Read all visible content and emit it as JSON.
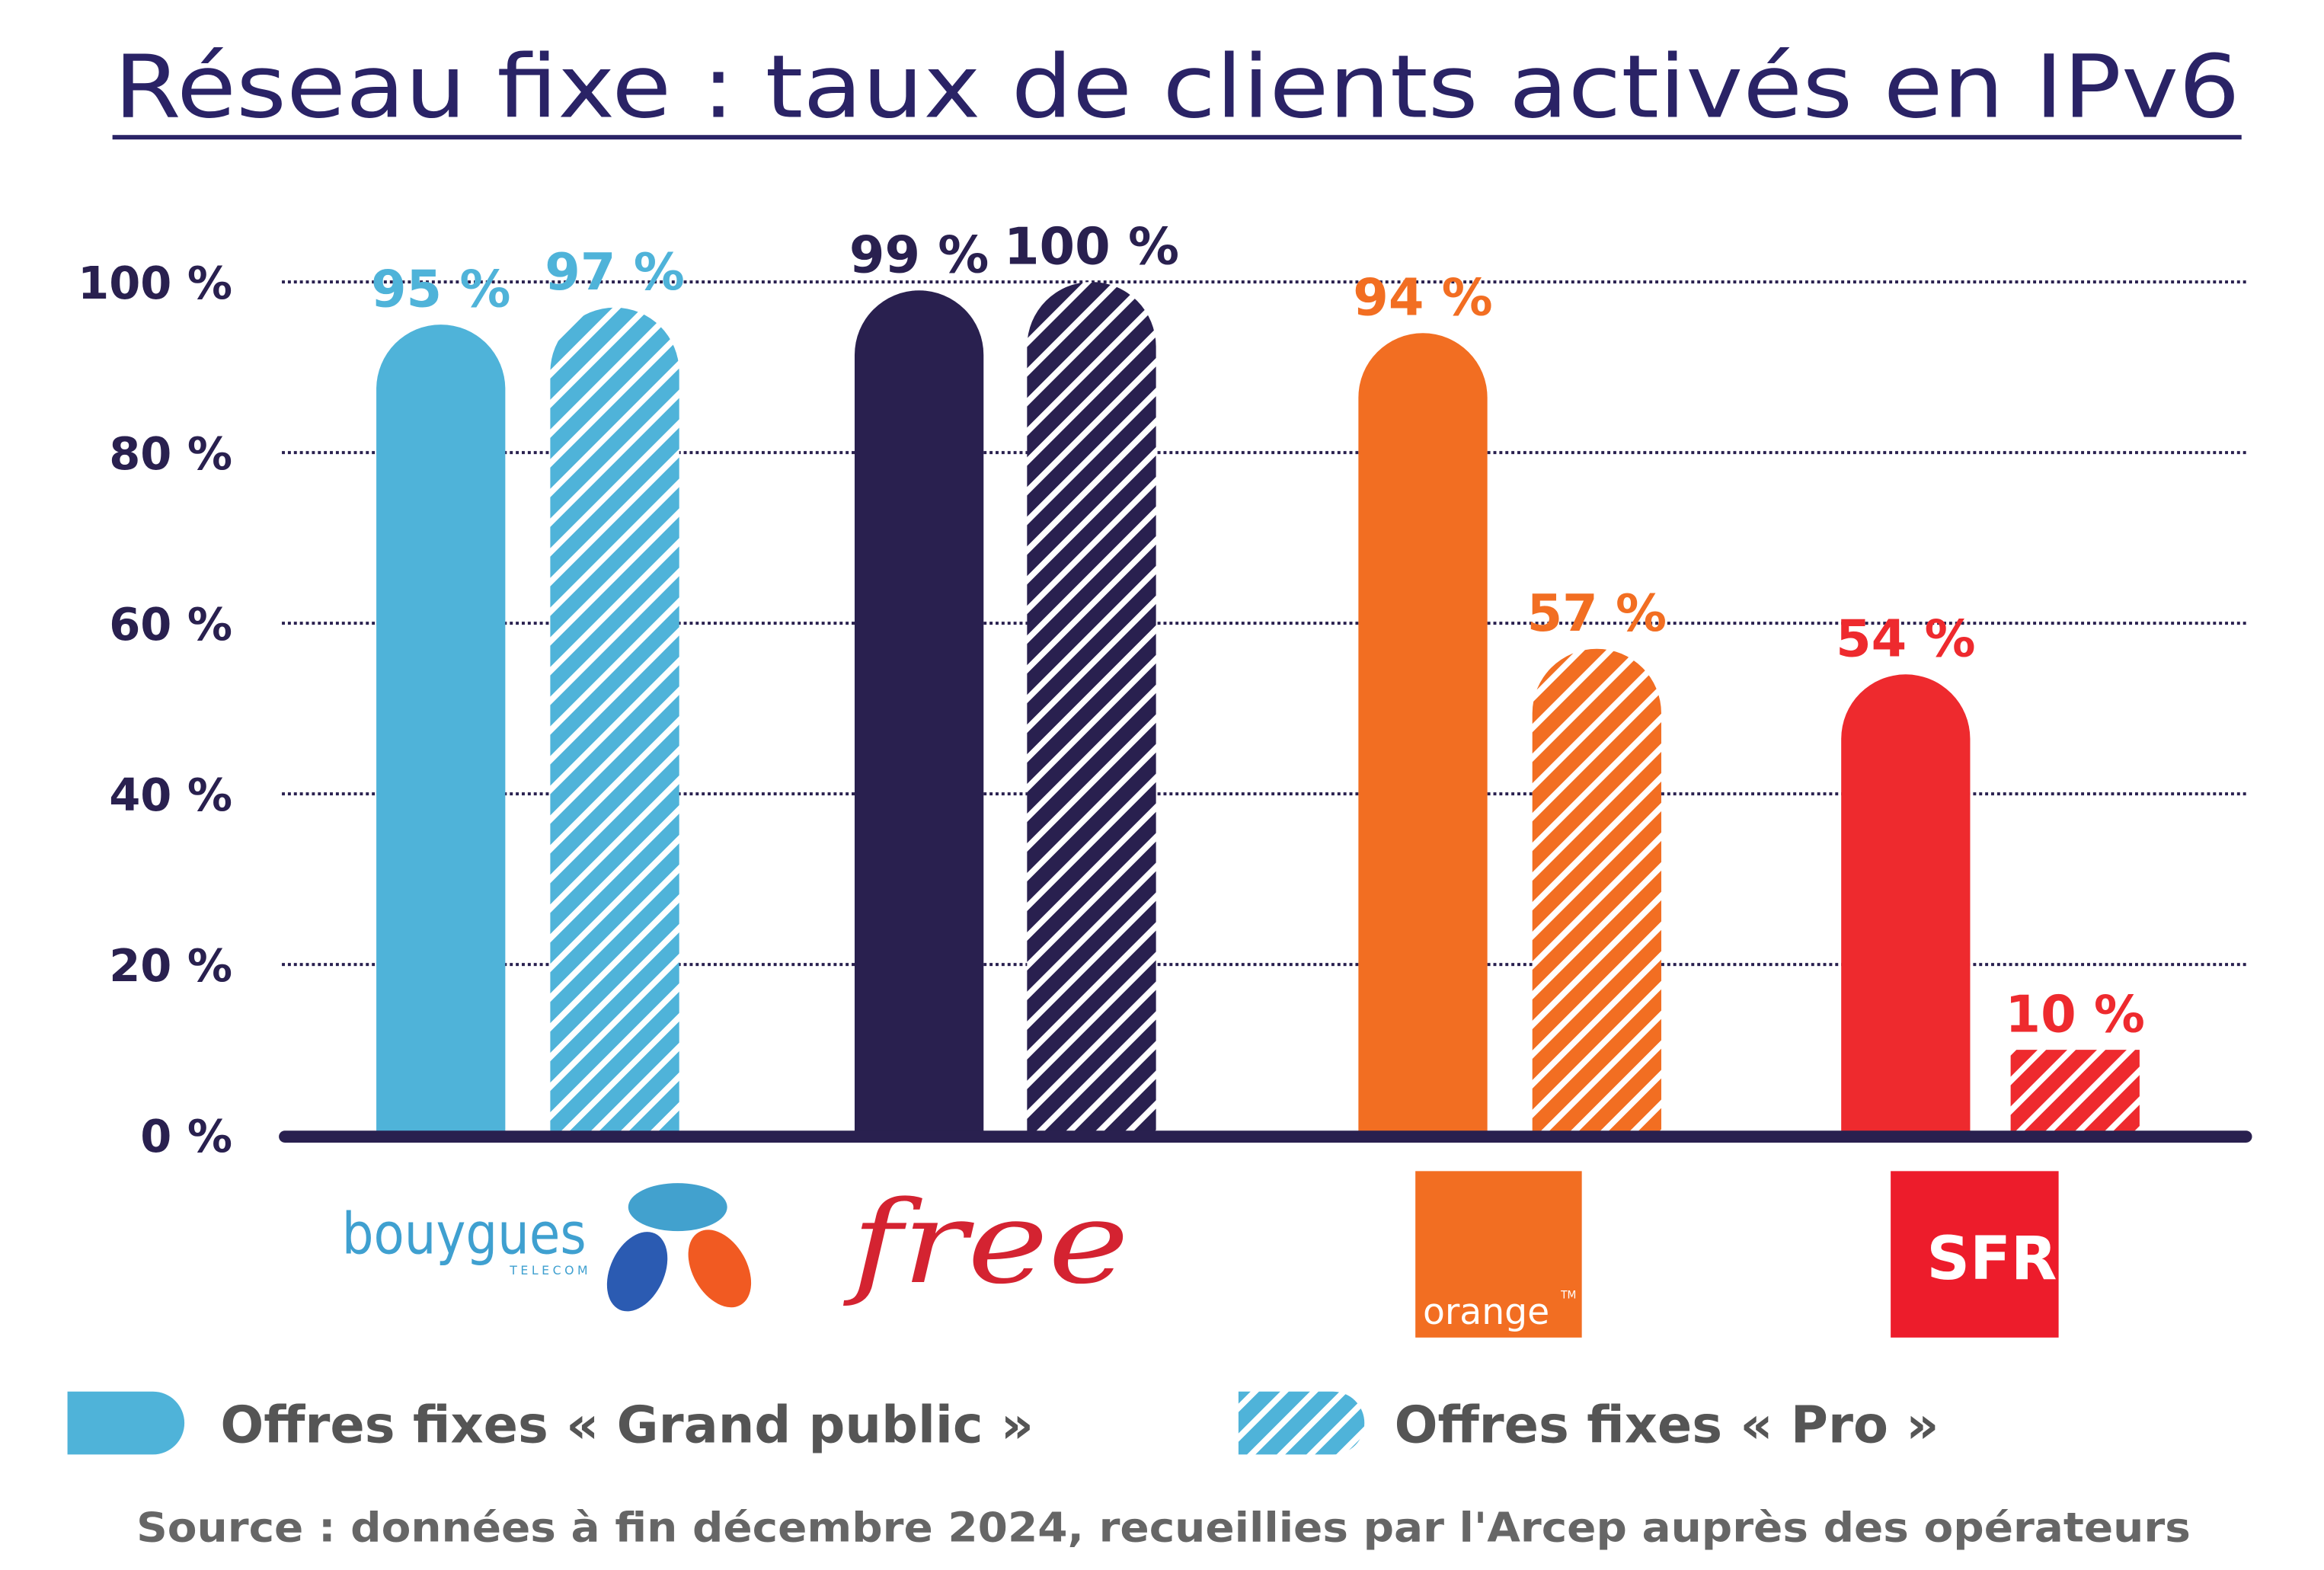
{
  "chart_data": {
    "type": "bar",
    "title": "Réseau fixe : taux de clients activés en IPv6",
    "categories": [
      "Bouygues Telecom",
      "Free",
      "Orange",
      "SFR"
    ],
    "series": [
      {
        "name": "Offres fixes « Grand public »",
        "pattern": "solid",
        "values": [
          95,
          99,
          94,
          54
        ]
      },
      {
        "name": "Offres fixes « Pro »",
        "pattern": "hatched",
        "values": [
          97,
          100,
          57,
          10
        ]
      }
    ],
    "data_labels": [
      [
        "95 %",
        "97 %"
      ],
      [
        "99 %",
        "100 %"
      ],
      [
        "94 %",
        "57 %"
      ],
      [
        "54 %",
        "10 %"
      ]
    ],
    "category_colors": [
      "#4fb3d9",
      "#29204f",
      "#f26e22",
      "#ee2a2e"
    ],
    "yticks": [
      0,
      20,
      40,
      60,
      80,
      100
    ],
    "ytick_labels": [
      "0 %",
      "20 %",
      "40 %",
      "60 %",
      "80 %",
      "100 %"
    ],
    "ylim": [
      0,
      100
    ],
    "grid": "dotted horizontal",
    "legend_position": "bottom",
    "xlabel": "",
    "ylabel": ""
  },
  "logos": {
    "bouygues": "bouygues",
    "bouygues_sub": "TELECOM",
    "free": "free",
    "orange": "orange",
    "orange_tm": "TM",
    "sfr": "SFR"
  },
  "source": "Source : données à fin décembre 2024, recueillies par l'Arcep auprès des opérateurs",
  "colors": {
    "title": "#2a2366",
    "axis": "#29204f",
    "legend_text": "#555555"
  }
}
